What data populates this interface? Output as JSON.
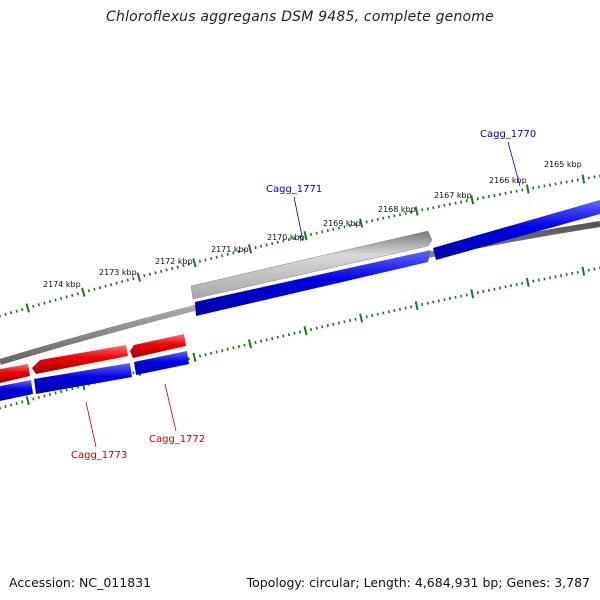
{
  "title": "Chloroflexus aggregans DSM 9485, complete genome",
  "footer": {
    "accession": "Accession: NC_011831",
    "stats": "Topology: circular; Length: 4,684,931 bp; Genes: 3,787"
  },
  "colors": {
    "plus_strand": "#0000dd",
    "minus_strand": "#e00000",
    "selected_gene": "#b8b8b8",
    "backbone": "#7a7a7a",
    "ticks": "#1a7a1a",
    "label_plus": "#0000cc",
    "label_minus": "#cc0000"
  },
  "diagram": {
    "ticks": [
      {
        "label": "2165 kbp"
      },
      {
        "label": "2166 kbp"
      },
      {
        "label": "2167 kbp"
      },
      {
        "label": "2168 kbp"
      },
      {
        "label": "2169 kbp"
      },
      {
        "label": "2170 kbp"
      },
      {
        "label": "2171 kbp"
      },
      {
        "label": "2172 kbp"
      },
      {
        "label": "2173 kbp"
      },
      {
        "label": "2174 kbp"
      }
    ],
    "gene_labels": [
      {
        "name": "Cagg_1770",
        "strand": "plus"
      },
      {
        "name": "Cagg_1771",
        "strand": "plus"
      },
      {
        "name": "Cagg_1772",
        "strand": "minus"
      },
      {
        "name": "Cagg_1773",
        "strand": "minus"
      }
    ]
  }
}
